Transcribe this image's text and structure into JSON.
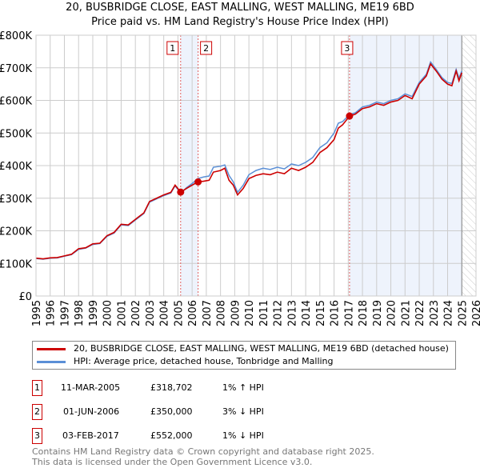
{
  "title": "20, BUSBRIDGE CLOSE, EAST MALLING, WEST MALLING, ME19 6BD",
  "subtitle": "Price paid vs. HM Land Registry's House Price Index (HPI)",
  "chart_data": {
    "type": "line",
    "ylim": [
      0,
      800000
    ],
    "xlim": [
      1995,
      2026
    ],
    "yticks": [
      "£0",
      "£100K",
      "£200K",
      "£300K",
      "£400K",
      "£500K",
      "£600K",
      "£700K",
      "£800K"
    ],
    "xticks": [
      "1995",
      "1996",
      "1997",
      "1998",
      "1999",
      "2000",
      "2001",
      "2002",
      "2003",
      "2004",
      "2005",
      "2006",
      "2007",
      "2008",
      "2009",
      "2010",
      "2011",
      "2012",
      "2013",
      "2014",
      "2015",
      "2016",
      "2017",
      "2018",
      "2019",
      "2020",
      "2021",
      "2022",
      "2023",
      "2024",
      "2025",
      "2026"
    ],
    "grid": true,
    "series": [
      {
        "name": "20, BUSBRIDGE CLOSE, EAST MALLING, WEST MALLING, ME19 6BD (detached house)",
        "color": "#cc0000",
        "x": [
          1995,
          1995.5,
          1996,
          1996.5,
          1997,
          1997.5,
          1998,
          1998.5,
          1999,
          1999.5,
          2000,
          2000.5,
          2001,
          2001.5,
          2002,
          2002.3,
          2002.6,
          2003,
          2003.5,
          2004,
          2004.5,
          2004.8,
          2005.2,
          2005.6,
          2006,
          2006.4,
          2006.8,
          2007.2,
          2007.5,
          2008,
          2008.3,
          2008.6,
          2008.9,
          2009.2,
          2009.6,
          2010,
          2010.5,
          2011,
          2011.5,
          2012,
          2012.5,
          2013,
          2013.5,
          2014,
          2014.5,
          2015,
          2015.5,
          2016,
          2016.3,
          2016.6,
          2017.1,
          2017.5,
          2018,
          2018.5,
          2019,
          2019.5,
          2020,
          2020.5,
          2021,
          2021.5,
          2022,
          2022.5,
          2022.8,
          2023.2,
          2023.6,
          2024,
          2024.3,
          2024.6,
          2024.8,
          2025
        ],
        "y": [
          116000,
          114000,
          117000,
          118000,
          123000,
          128000,
          145000,
          148000,
          160000,
          162000,
          185000,
          195000,
          220000,
          218000,
          235000,
          245000,
          255000,
          290000,
          300000,
          310000,
          318000,
          340000,
          318702,
          330000,
          340000,
          350000,
          352000,
          355000,
          380000,
          385000,
          392000,
          355000,
          340000,
          310000,
          330000,
          360000,
          370000,
          375000,
          372000,
          380000,
          375000,
          392000,
          385000,
          395000,
          410000,
          440000,
          455000,
          480000,
          515000,
          525000,
          552000,
          558000,
          575000,
          580000,
          590000,
          585000,
          595000,
          600000,
          615000,
          605000,
          650000,
          675000,
          712000,
          690000,
          665000,
          650000,
          645000,
          690000,
          660000,
          685000
        ]
      },
      {
        "name": "HPI: Average price, detached house, Tonbridge and Malling",
        "color": "#5b8fd6",
        "x": [
          1995,
          1995.5,
          1996,
          1996.5,
          1997,
          1997.5,
          1998,
          1998.5,
          1999,
          1999.5,
          2000,
          2000.5,
          2001,
          2001.5,
          2002,
          2002.3,
          2002.6,
          2003,
          2003.5,
          2004,
          2004.5,
          2004.8,
          2005.2,
          2005.6,
          2006,
          2006.4,
          2006.8,
          2007.2,
          2007.5,
          2008,
          2008.3,
          2008.6,
          2008.9,
          2009.2,
          2009.6,
          2010,
          2010.5,
          2011,
          2011.5,
          2012,
          2012.5,
          2013,
          2013.5,
          2014,
          2014.5,
          2015,
          2015.5,
          2016,
          2016.3,
          2016.6,
          2017.1,
          2017.5,
          2018,
          2018.5,
          2019,
          2019.5,
          2020,
          2020.5,
          2021,
          2021.5,
          2022,
          2022.5,
          2022.8,
          2023.2,
          2023.6,
          2024,
          2024.3,
          2024.6,
          2024.8,
          2025
        ],
        "y": [
          115000,
          113000,
          116000,
          117000,
          122000,
          127000,
          143000,
          147000,
          158000,
          161000,
          183000,
          193000,
          218000,
          216000,
          233000,
          243000,
          253000,
          288000,
          298000,
          308000,
          316000,
          338000,
          315000,
          332000,
          345000,
          360000,
          365000,
          368000,
          395000,
          398000,
          402000,
          370000,
          350000,
          318000,
          340000,
          372000,
          385000,
          392000,
          388000,
          395000,
          390000,
          405000,
          400000,
          410000,
          425000,
          455000,
          470000,
          500000,
          530000,
          535000,
          557000,
          562000,
          580000,
          585000,
          595000,
          590000,
          600000,
          605000,
          620000,
          612000,
          655000,
          680000,
          718000,
          695000,
          670000,
          655000,
          652000,
          695000,
          668000,
          690000
        ]
      }
    ],
    "sales": [
      {
        "label": "1",
        "x": 2005.19,
        "price": 318702
      },
      {
        "label": "2",
        "x": 2006.42,
        "price": 350000
      },
      {
        "label": "3",
        "x": 2017.09,
        "price": 552000
      }
    ],
    "hatched_from": 2025
  },
  "legend": {
    "red_label": "20, BUSBRIDGE CLOSE, EAST MALLING, WEST MALLING, ME19 6BD (detached house)",
    "blue_label": "HPI: Average price, detached house, Tonbridge and Malling"
  },
  "transactions": [
    {
      "num": "1",
      "date": "11-MAR-2005",
      "price": "£318,702",
      "hpi": "1% ↑ HPI"
    },
    {
      "num": "2",
      "date": "01-JUN-2006",
      "price": "£350,000",
      "hpi": "3% ↓ HPI"
    },
    {
      "num": "3",
      "date": "03-FEB-2017",
      "price": "£552,000",
      "hpi": "1% ↓ HPI"
    }
  ],
  "footer": {
    "line1": "Contains HM Land Registry data © Crown copyright and database right 2025.",
    "line2": "This data is licensed under the Open Government Licence v3.0."
  }
}
